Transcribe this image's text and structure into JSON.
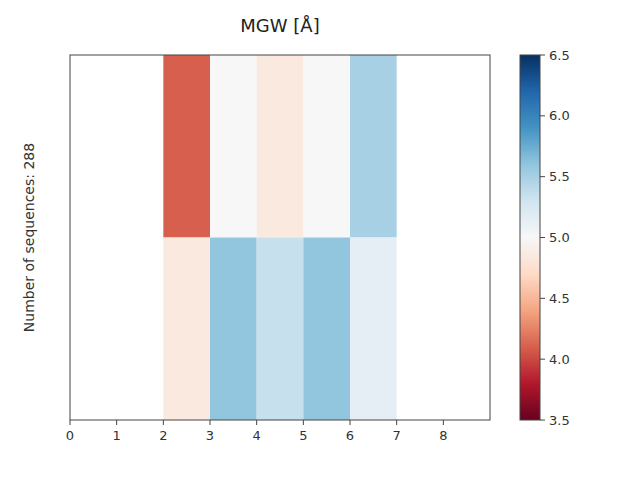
{
  "chart_data": {
    "type": "heatmap",
    "title": "MGW [Å]",
    "ylabel": "Number of sequences: 288",
    "values": [
      [
        null,
        null,
        4.1,
        5.0,
        4.85,
        5.0,
        5.5,
        null,
        null
      ],
      [
        null,
        null,
        4.85,
        5.6,
        5.35,
        5.6,
        5.15,
        null,
        null
      ]
    ],
    "xlim": [
      0,
      9
    ],
    "xticks": [
      0,
      1,
      2,
      3,
      4,
      5,
      6,
      7,
      8
    ],
    "tick_labels": "x",
    "color_range": [
      3.5,
      6.5
    ],
    "color_ticks": [
      3.5,
      4.0,
      4.5,
      5.0,
      5.5,
      6.0,
      6.5
    ]
  }
}
